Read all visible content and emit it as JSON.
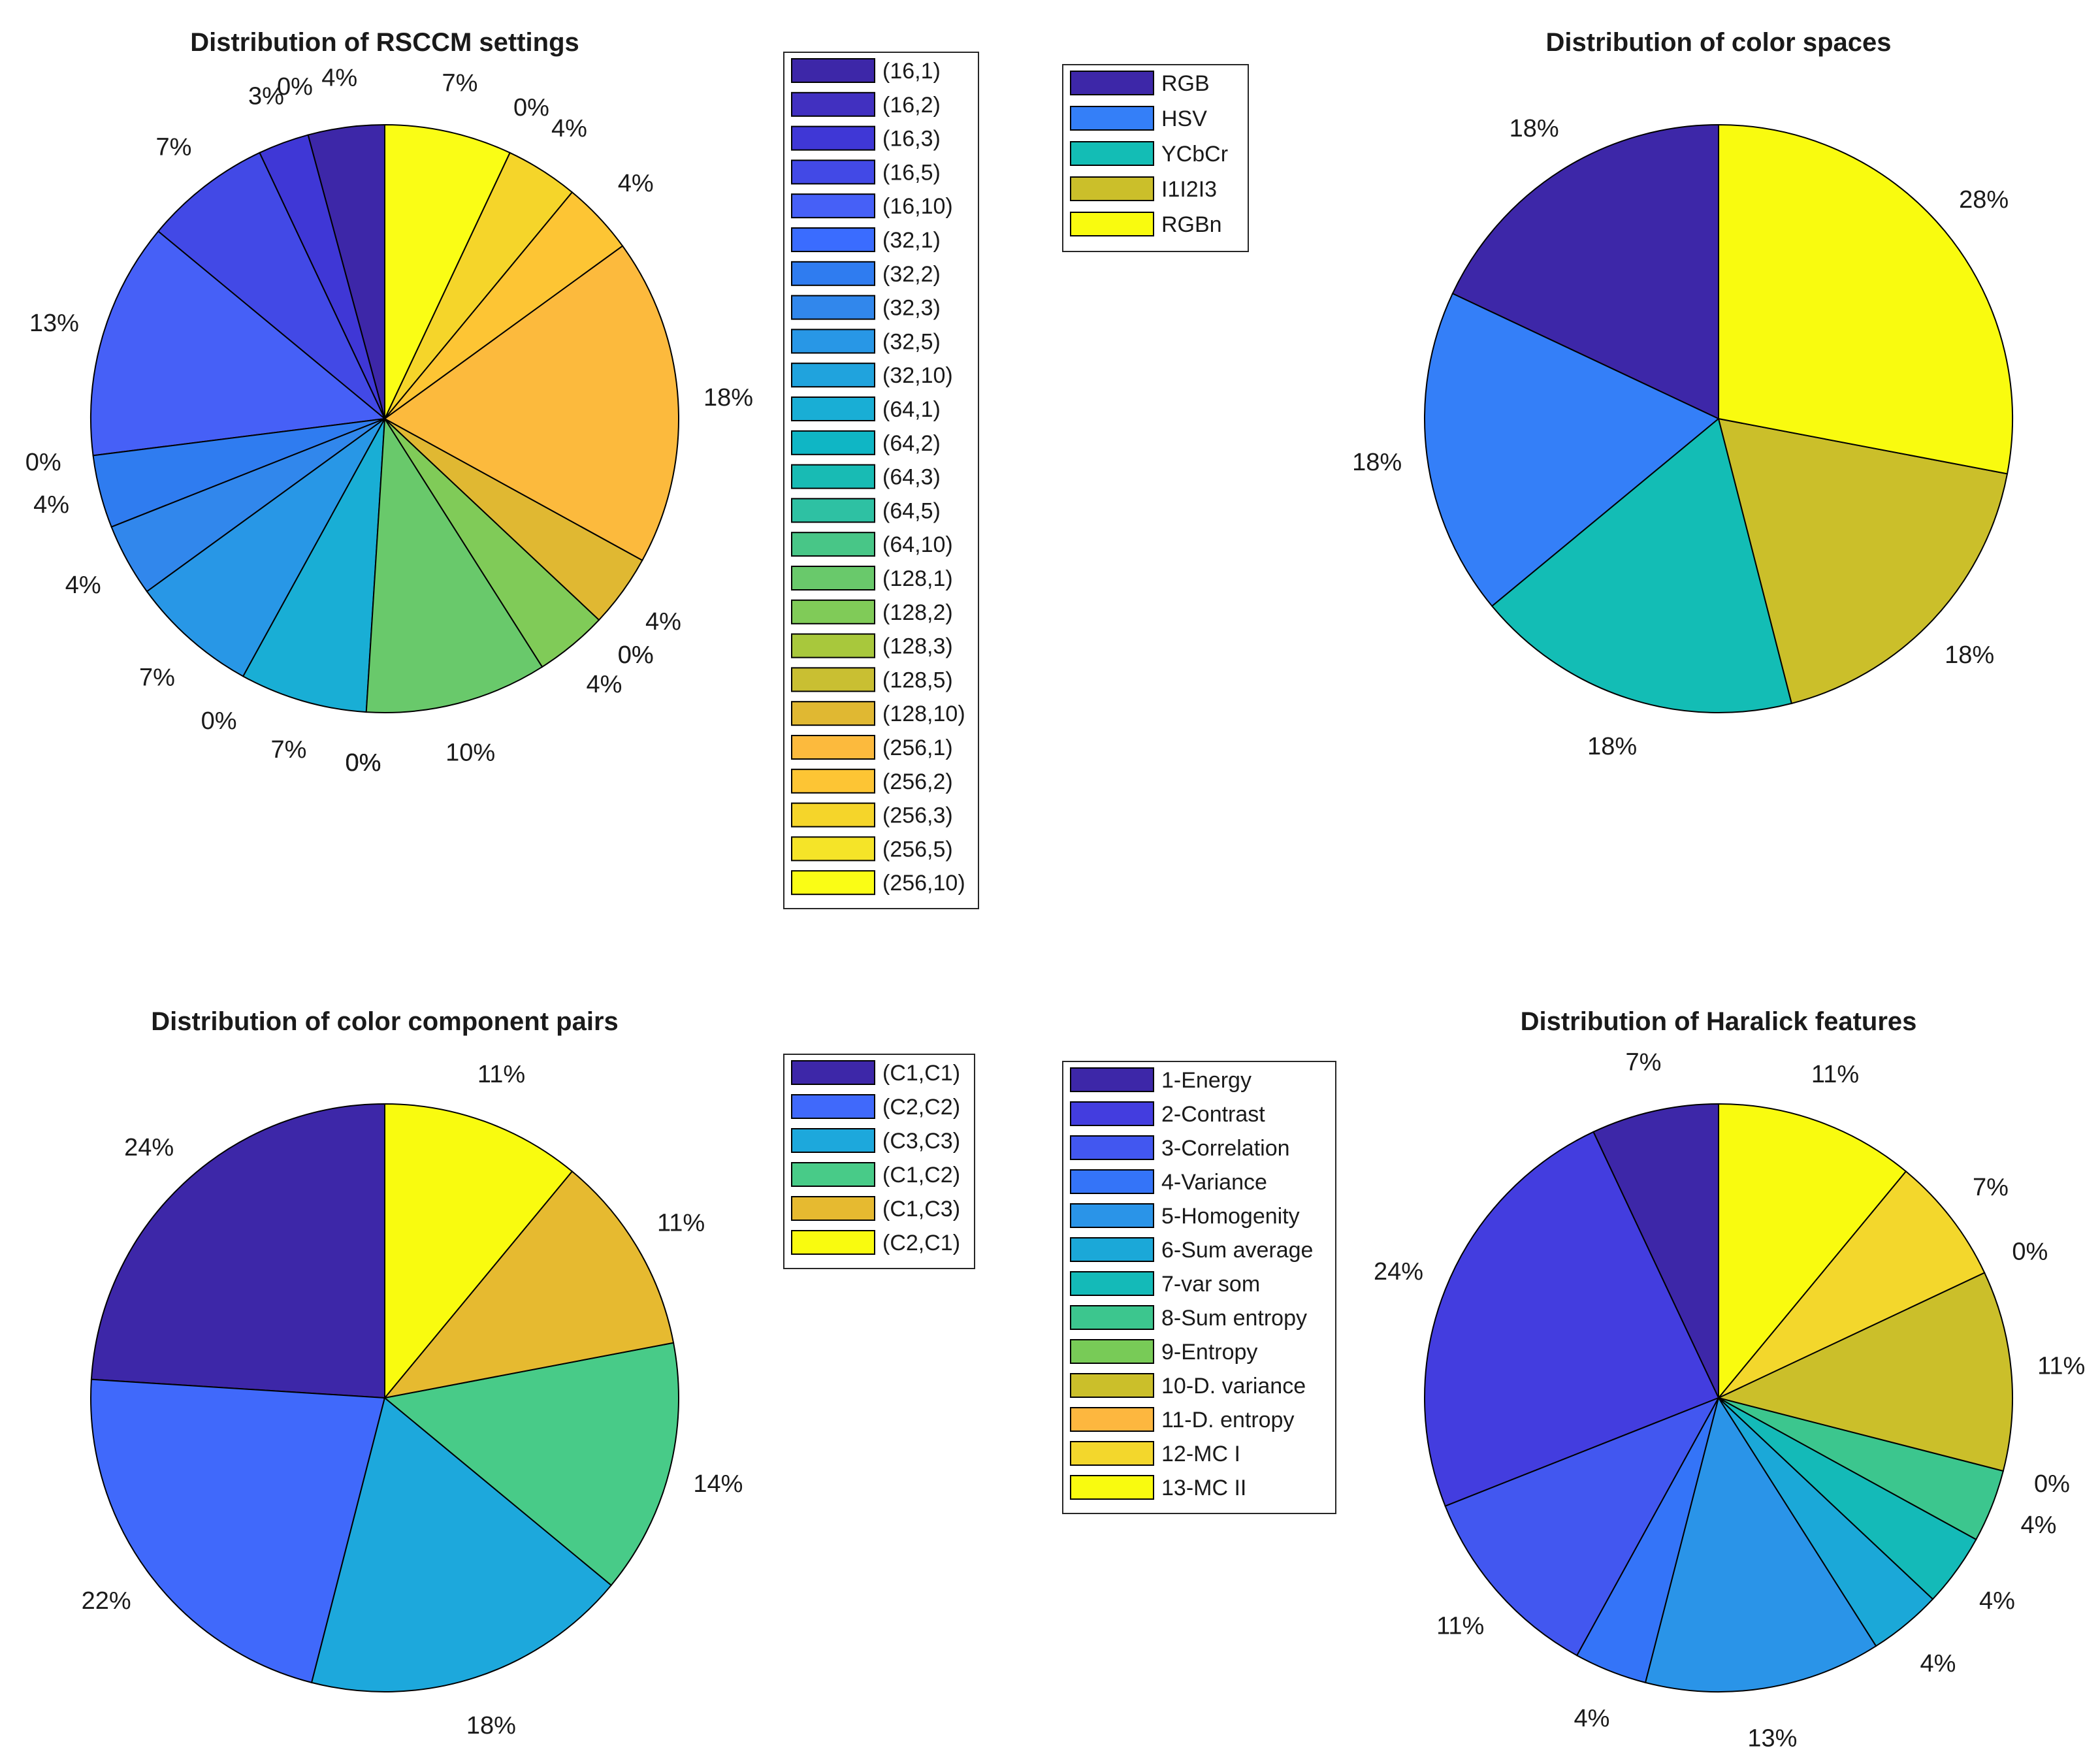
{
  "chart_data": [
    {
      "id": "rsccm",
      "type": "pie",
      "title": "Distribution of RSCCM settings",
      "labels": [
        "(16,1)",
        "(16,2)",
        "(16,3)",
        "(16,5)",
        "(16,10)",
        "(32,1)",
        "(32,2)",
        "(32,3)",
        "(32,5)",
        "(32,10)",
        "(64,1)",
        "(64,2)",
        "(64,3)",
        "(64,5)",
        "(64,10)",
        "(128,1)",
        "(128,2)",
        "(128,3)",
        "(128,5)",
        "(128,10)",
        "(256,1)",
        "(256,2)",
        "(256,3)",
        "(256,5)",
        "(256,10)"
      ],
      "values": [
        4.2,
        0,
        2.8,
        7,
        13,
        0,
        4,
        4,
        7,
        0,
        7,
        0,
        0,
        0,
        0,
        10,
        4,
        0,
        0,
        4,
        18,
        4,
        4,
        0,
        7
      ],
      "pct_labels": [
        "4%",
        "0%",
        "3%",
        "7%",
        "13%",
        "0%",
        "4%",
        "4%",
        "7%",
        "0%",
        "7%",
        "0%",
        "0%",
        "0%",
        "0%",
        "10%",
        "4%",
        "0%",
        "0%",
        "4%",
        "18%",
        "4%",
        "4%",
        "0%",
        "7%"
      ],
      "colors": [
        "#3d27a8",
        "#4130c0",
        "#3f37d6",
        "#4249e6",
        "#4660f7",
        "#3a6cff",
        "#2f7cf0",
        "#3187ec",
        "#2897e6",
        "#20a3dd",
        "#19aed5",
        "#0fb6c5",
        "#18bbb4",
        "#2ec1a3",
        "#48c687",
        "#69c96b",
        "#80cb58",
        "#a8c83c",
        "#c9bf32",
        "#e0b832",
        "#fcba3d",
        "#fdc534",
        "#f5d52a",
        "#f5e428",
        "#fafd15"
      ]
    },
    {
      "id": "colorspaces",
      "type": "pie",
      "title": "Distribution of color spaces",
      "labels": [
        "RGB",
        "HSV",
        "YCbCr",
        "I1I2I3",
        "RGBn"
      ],
      "values": [
        18,
        18,
        18,
        18,
        28
      ],
      "pct_labels": [
        "18%",
        "18%",
        "18%",
        "18%",
        "28%"
      ],
      "colors": [
        "#3d27a8",
        "#347ff8",
        "#13bdb5",
        "#cbbf2a",
        "#f9fb0f"
      ]
    },
    {
      "id": "pairs",
      "type": "pie",
      "title": "Distribution of color component pairs",
      "labels": [
        "(C1,C1)",
        "(C2,C2)",
        "(C3,C3)",
        "(C1,C2)",
        "(C1,C3)",
        "(C2,C1)"
      ],
      "values": [
        24,
        22,
        18,
        14,
        11,
        11
      ],
      "pct_labels": [
        "24%",
        "22%",
        "18%",
        "14%",
        "11%",
        "11%"
      ],
      "colors": [
        "#3d27a8",
        "#4069fb",
        "#1da8dc",
        "#48cb88",
        "#e6ba30",
        "#f9fb0f"
      ]
    },
    {
      "id": "haralick",
      "type": "pie",
      "title": "Distribution of Haralick features",
      "labels": [
        "1-Energy",
        "2-Contrast",
        "3-Correlation",
        "4-Variance",
        "5-Homogenity",
        "6-Sum average",
        "7-var som",
        "8-Sum entropy",
        "9-Entropy",
        "10-D. variance",
        "11-D. entropy",
        "12-MC I",
        "13-MC II"
      ],
      "values": [
        7,
        24,
        11,
        4,
        13,
        4,
        4,
        4,
        0,
        11,
        0,
        7,
        11
      ],
      "pct_labels": [
        "7%",
        "24%",
        "11%",
        "4%",
        "13%",
        "4%",
        "4%",
        "4%",
        "0%",
        "11%",
        "0%",
        "7%",
        "11%"
      ],
      "colors": [
        "#3d27a8",
        "#433ddf",
        "#4257f0",
        "#3474f8",
        "#2a94e8",
        "#1ba8d8",
        "#14bab8",
        "#3cc68e",
        "#78cb57",
        "#cbbf2a",
        "#fdb73f",
        "#f3d72c",
        "#f9fb0f"
      ]
    }
  ]
}
